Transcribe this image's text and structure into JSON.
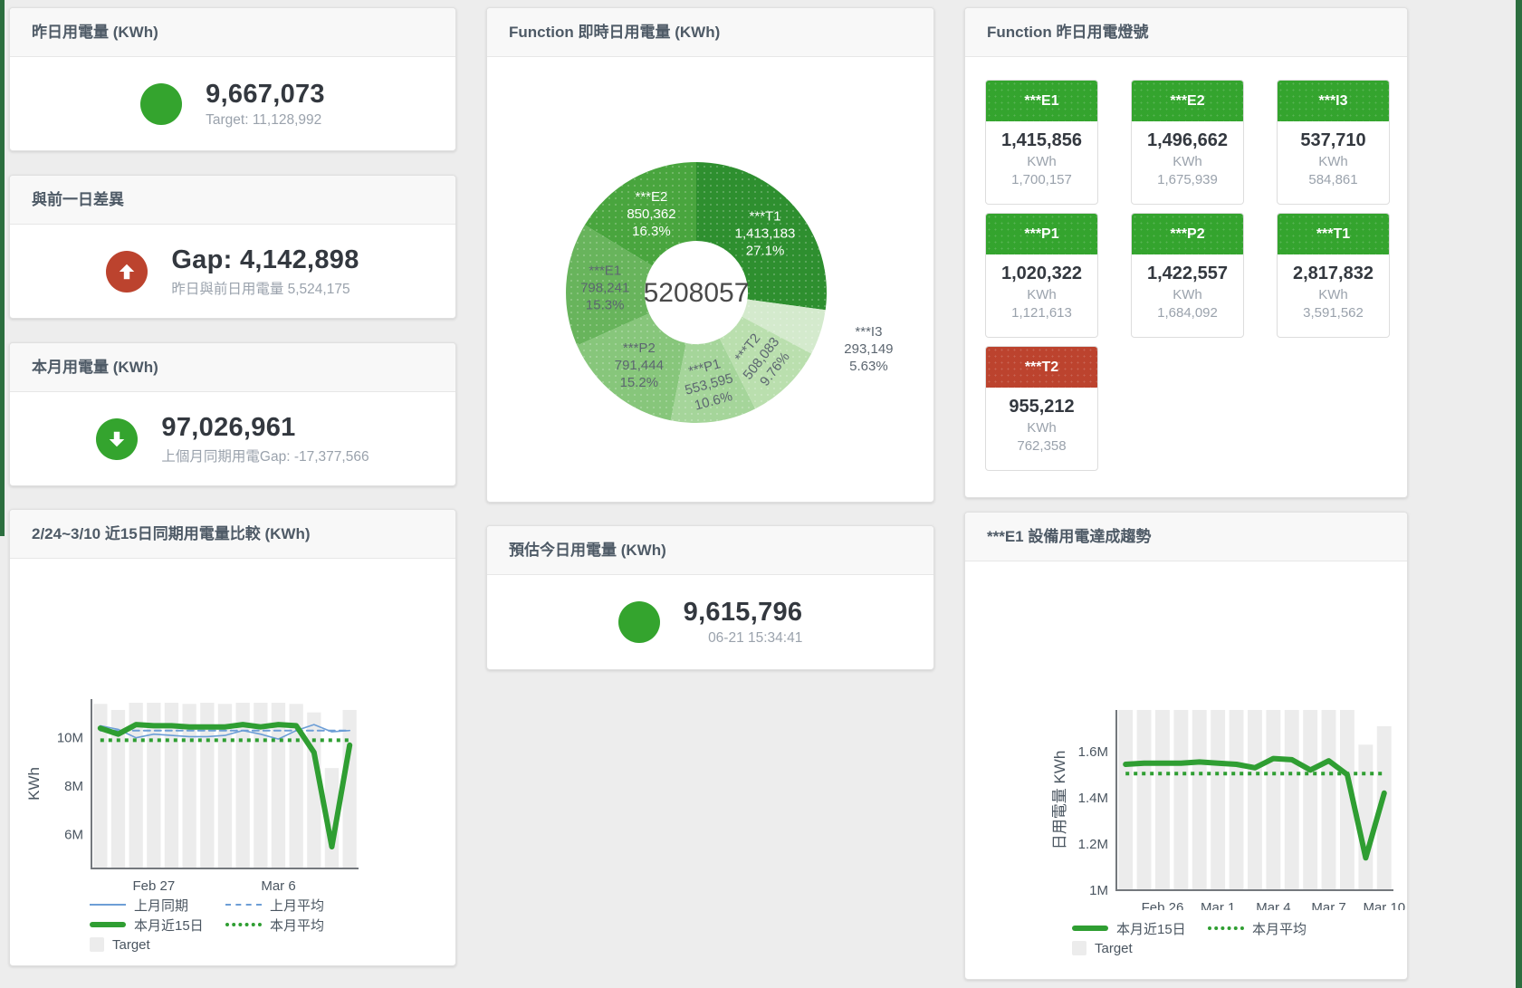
{
  "colors": {
    "green": "#34a42e",
    "red": "#bc432e",
    "blue": "#6d9ed6",
    "bar": "#ececec",
    "axis": "#74787d",
    "text": "#4a5560"
  },
  "cards": {
    "yesterday": {
      "title": "昨日用電量 (KWh)",
      "value": "9,667,073",
      "sub": "Target: 11,128,992",
      "circle_color": "#34a42e"
    },
    "diff": {
      "title": "與前一日差異",
      "value": "Gap: 4,142,898",
      "sub": "昨日與前日用電量 5,524,175",
      "circle_color": "#bc432e",
      "icon": "arrow-up"
    },
    "month": {
      "title": "本月用電量 (KWh)",
      "value": "97,026,961",
      "sub": "上個月同期用電Gap: -17,377,566",
      "circle_color": "#34a42e",
      "icon": "arrow-down"
    },
    "estimate": {
      "title": "預估今日用電量 (KWh)",
      "value": "9,615,796",
      "sub": "06-21 15:34:41",
      "circle_color": "#34a42e"
    },
    "lights": {
      "title": "Function 昨日用電燈號",
      "tiles": [
        {
          "label": "***E1",
          "value": "1,415,856",
          "unit": "KWh",
          "sub": "1,700,157",
          "status": "green"
        },
        {
          "label": "***E2",
          "value": "1,496,662",
          "unit": "KWh",
          "sub": "1,675,939",
          "status": "green"
        },
        {
          "label": "***I3",
          "value": "537,710",
          "unit": "KWh",
          "sub": "584,861",
          "status": "green"
        },
        {
          "label": "***P1",
          "value": "1,020,322",
          "unit": "KWh",
          "sub": "1,121,613",
          "status": "green"
        },
        {
          "label": "***P2",
          "value": "1,422,557",
          "unit": "KWh",
          "sub": "1,684,092",
          "status": "green"
        },
        {
          "label": "***T1",
          "value": "2,817,832",
          "unit": "KWh",
          "sub": "3,591,562",
          "status": "green"
        },
        {
          "label": "***T2",
          "value": "955,212",
          "unit": "KWh",
          "sub": "762,358",
          "status": "red"
        }
      ]
    }
  },
  "chart_data": [
    {
      "type": "pie",
      "title": "Function 即時日用電量 (KWh)",
      "center_total": "5208057",
      "legend_position": "none",
      "slices": [
        {
          "name": "***T1",
          "value": 1413183,
          "label": "1,413,183",
          "pct": "27.1%",
          "color": "#2e8f2f",
          "label_color": "#ffffff"
        },
        {
          "name": "***I3",
          "value": 293149,
          "label": "293,149",
          "pct": "5.63%",
          "color": "#d4eacd",
          "label_color": "#5c6670",
          "label_outside": true
        },
        {
          "name": "***T2",
          "value": 508083,
          "label": "508,083",
          "pct": "9.76%",
          "color": "#badfae",
          "label_color": "#5c6670",
          "label_rotate": -52
        },
        {
          "name": "***P1",
          "value": 553595,
          "label": "553,595",
          "pct": "10.6%",
          "color": "#a5d59a",
          "label_color": "#5c6670",
          "label_rotate": -15
        },
        {
          "name": "***P2",
          "value": 791444,
          "label": "791,444",
          "pct": "15.2%",
          "color": "#87c67b",
          "label_color": "#5c6670"
        },
        {
          "name": "***E1",
          "value": 798241,
          "label": "798,241",
          "pct": "15.3%",
          "color": "#68b45c",
          "label_color": "#5c6670"
        },
        {
          "name": "***E2",
          "value": 850362,
          "label": "850,362",
          "pct": "16.3%",
          "color": "#49a53e",
          "label_color": "#ffffff"
        }
      ]
    },
    {
      "type": "line+bar",
      "title": "2/24~3/10 近15日同期用電量比較 (KWh)",
      "ylabel": "KWh",
      "ylim": [
        4600000,
        11600000
      ],
      "grid": false,
      "legend_position": "bottom",
      "yticks": [
        {
          "value": 6000000,
          "label": "6M"
        },
        {
          "value": 8000000,
          "label": "8M"
        },
        {
          "value": 10000000,
          "label": "10M"
        }
      ],
      "x_labels": [
        {
          "index": 3,
          "label": "Feb 27"
        },
        {
          "index": 10,
          "label": "Mar 6"
        }
      ],
      "bars": {
        "name": "Target",
        "color": "#ececec",
        "values": [
          11400000,
          11150000,
          11450000,
          11450000,
          11450000,
          11400000,
          11450000,
          11400000,
          11450000,
          11450000,
          11450000,
          11400000,
          11050000,
          8750000,
          11150000
        ]
      },
      "series": [
        {
          "name": "上月同期",
          "color": "#6d9ed6",
          "style": "solid",
          "width": 1.6,
          "values": [
            10500000,
            10350000,
            10000000,
            10150000,
            10100000,
            10050000,
            10050000,
            10100000,
            10300000,
            10150000,
            9950000,
            10300000,
            10550000,
            10250000,
            10300000
          ]
        },
        {
          "name": "上月平均",
          "color": "#6d9ed6",
          "style": "dashed",
          "width": 2,
          "value": 10300000
        },
        {
          "name": "本月近15日",
          "color": "#2f9e32",
          "style": "solid",
          "width": 6,
          "values": [
            10400000,
            10150000,
            10550000,
            10500000,
            10500000,
            10450000,
            10450000,
            10450000,
            10550000,
            10450000,
            10550000,
            10500000,
            9400000,
            5500000,
            9700000
          ]
        },
        {
          "name": "本月平均",
          "color": "#2f9e32",
          "style": "dotted",
          "width": 4,
          "value": 9900000
        }
      ]
    },
    {
      "type": "line+bar",
      "title": "***E1 設備用電達成趨勢",
      "ylabel": "日用電量 KWh",
      "ylim": [
        1000000,
        1780000
      ],
      "grid": false,
      "legend_position": "bottom",
      "yticks": [
        {
          "value": 1000000,
          "label": "1M"
        },
        {
          "value": 1200000,
          "label": "1.2M"
        },
        {
          "value": 1400000,
          "label": "1.4M"
        },
        {
          "value": 1600000,
          "label": "1.6M"
        }
      ],
      "x_labels": [
        {
          "index": 2,
          "label": "Feb 26"
        },
        {
          "index": 5,
          "label": "Mar 1"
        },
        {
          "index": 8,
          "label": "Mar 4"
        },
        {
          "index": 11,
          "label": "Mar 7"
        },
        {
          "index": 14,
          "label": "Mar 10"
        }
      ],
      "bars": {
        "name": "Target",
        "color": "#ececec",
        "values": [
          1780000,
          1780000,
          1780000,
          1780000,
          1780000,
          1780000,
          1780000,
          1780000,
          1780000,
          1780000,
          1780000,
          1780000,
          1780000,
          1630000,
          1710000
        ]
      },
      "series": [
        {
          "name": "本月近15日",
          "color": "#2f9e32",
          "style": "solid",
          "width": 6,
          "values": [
            1545000,
            1550000,
            1550000,
            1550000,
            1555000,
            1550000,
            1545000,
            1530000,
            1570000,
            1565000,
            1520000,
            1560000,
            1500000,
            1140000,
            1420000
          ]
        },
        {
          "name": "本月平均",
          "color": "#2f9e32",
          "style": "dotted",
          "width": 4,
          "value": 1505000
        }
      ]
    }
  ]
}
